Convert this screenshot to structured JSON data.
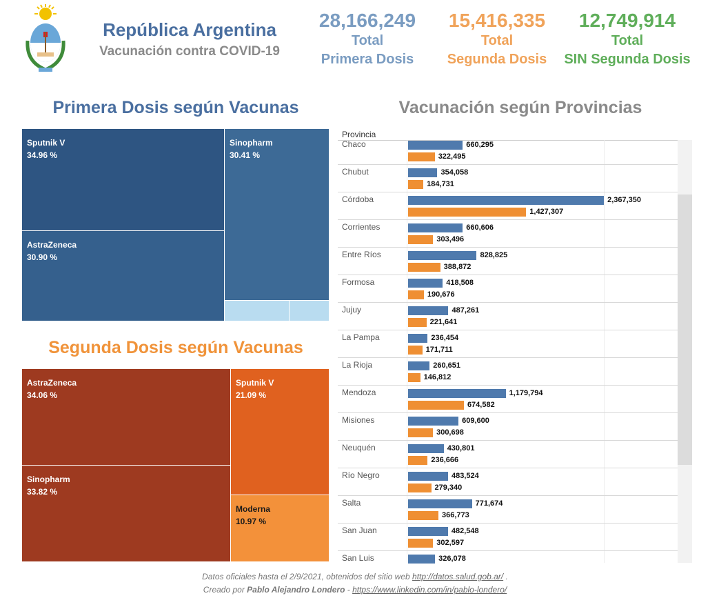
{
  "header": {
    "title": "República Argentina",
    "subtitle": "Vacunación contra COVID-19"
  },
  "kpis": [
    {
      "value": "28,166,249",
      "line1": "Total",
      "line2": "Primera Dosis",
      "color": "#7a9cc1"
    },
    {
      "value": "15,416,335",
      "line1": "Total",
      "line2": "Segunda Dosis",
      "color": "#f0a35a"
    },
    {
      "value": "12,749,914",
      "line1": "Total",
      "line2": "SIN Segunda Dosis",
      "color": "#5fae5a"
    }
  ],
  "primera": {
    "title": "Primera Dosis según Vacunas",
    "title_color": "#4a6fa0"
  },
  "segunda": {
    "title": "Segunda Dosis según Vacunas",
    "title_color": "#f0933a"
  },
  "provincias": {
    "title": "Vacunación según Provincias",
    "column_header": "Provincia"
  },
  "chart_data": [
    {
      "type": "treemap",
      "title": "Primera Dosis según Vacunas",
      "items": [
        {
          "label": "Sputnik V",
          "percent": "34.96 %",
          "value": 34.96,
          "color": "#2e5582"
        },
        {
          "label": "Sinopharm",
          "percent": "30.41 %",
          "value": 30.41,
          "color": "#3d6a96"
        },
        {
          "label": "AstraZeneca",
          "percent": "30.90 %",
          "value": 30.9,
          "color": "#35608d"
        },
        {
          "label": "",
          "percent": "",
          "value": 2.0,
          "color": "#b9dcf0"
        },
        {
          "label": "",
          "percent": "",
          "value": 1.0,
          "color": "#b9dcf0"
        }
      ]
    },
    {
      "type": "treemap",
      "title": "Segunda Dosis según Vacunas",
      "items": [
        {
          "label": "AstraZeneca",
          "percent": "34.06 %",
          "value": 34.06,
          "color": "#9e3a20"
        },
        {
          "label": "Sputnik V",
          "percent": "21.09 %",
          "value": 21.09,
          "color": "#e0611f"
        },
        {
          "label": "Sinopharm",
          "percent": "33.82 %",
          "value": 33.82,
          "color": "#9e3a20"
        },
        {
          "label": "Moderna",
          "percent": "10.97 %",
          "value": 10.97,
          "color": "#f3913a"
        }
      ]
    },
    {
      "type": "bar",
      "orientation": "horizontal",
      "title": "Vacunación según Provincias",
      "xlim": [
        0,
        8000000
      ],
      "series": [
        {
          "name": "Primera Dosis",
          "color": "#4f7aad"
        },
        {
          "name": "Segunda Dosis",
          "color": "#ef8f33"
        }
      ],
      "categories": [
        "Chaco",
        "Chubut",
        "Córdoba",
        "Corrientes",
        "Entre Ríos",
        "Formosa",
        "Jujuy",
        "La Pampa",
        "La Rioja",
        "Mendoza",
        "Misiones",
        "Neuquén",
        "Río Negro",
        "Salta",
        "San Juan",
        "San Luis"
      ],
      "rows": [
        {
          "name": "Chaco",
          "first": 660295,
          "first_label": "660,295",
          "second": 322495,
          "second_label": "322,495"
        },
        {
          "name": "Chubut",
          "first": 354058,
          "first_label": "354,058",
          "second": 184731,
          "second_label": "184,731"
        },
        {
          "name": "Córdoba",
          "first": 2367350,
          "first_label": "2,367,350",
          "second": 1427307,
          "second_label": "1,427,307"
        },
        {
          "name": "Corrientes",
          "first": 660606,
          "first_label": "660,606",
          "second": 303496,
          "second_label": "303,496"
        },
        {
          "name": "Entre Ríos",
          "first": 828825,
          "first_label": "828,825",
          "second": 388872,
          "second_label": "388,872"
        },
        {
          "name": "Formosa",
          "first": 418508,
          "first_label": "418,508",
          "second": 190676,
          "second_label": "190,676"
        },
        {
          "name": "Jujuy",
          "first": 487261,
          "first_label": "487,261",
          "second": 221641,
          "second_label": "221,641"
        },
        {
          "name": "La Pampa",
          "first": 236454,
          "first_label": "236,454",
          "second": 171711,
          "second_label": "171,711"
        },
        {
          "name": "La Rioja",
          "first": 260651,
          "first_label": "260,651",
          "second": 146812,
          "second_label": "146,812"
        },
        {
          "name": "Mendoza",
          "first": 1179794,
          "first_label": "1,179,794",
          "second": 674582,
          "second_label": "674,582"
        },
        {
          "name": "Misiones",
          "first": 609600,
          "first_label": "609,600",
          "second": 300698,
          "second_label": "300,698"
        },
        {
          "name": "Neuquén",
          "first": 430801,
          "first_label": "430,801",
          "second": 236666,
          "second_label": "236,666"
        },
        {
          "name": "Río Negro",
          "first": 483524,
          "first_label": "483,524",
          "second": 279340,
          "second_label": "279,340"
        },
        {
          "name": "Salta",
          "first": 771674,
          "first_label": "771,674",
          "second": 366773,
          "second_label": "366,773"
        },
        {
          "name": "San Juan",
          "first": 482548,
          "first_label": "482,548",
          "second": 302597,
          "second_label": "302,597"
        },
        {
          "name": "San Luis",
          "first": 326078,
          "first_label": "326,078",
          "second": null,
          "second_label": null
        }
      ]
    }
  ],
  "footer": {
    "line1_text": "Datos oficiales hasta el 2/9/2021, obtenidos del sitio web",
    "line1_link": "http://datos.salud.gob.ar/",
    "line1_end": ".",
    "line2_text": "Creado por",
    "line2_author": "Pablo Alejandro Londero",
    "line2_sep": "-",
    "line2_link": "https://www.linkedin.com/in/pablo-londero/"
  }
}
